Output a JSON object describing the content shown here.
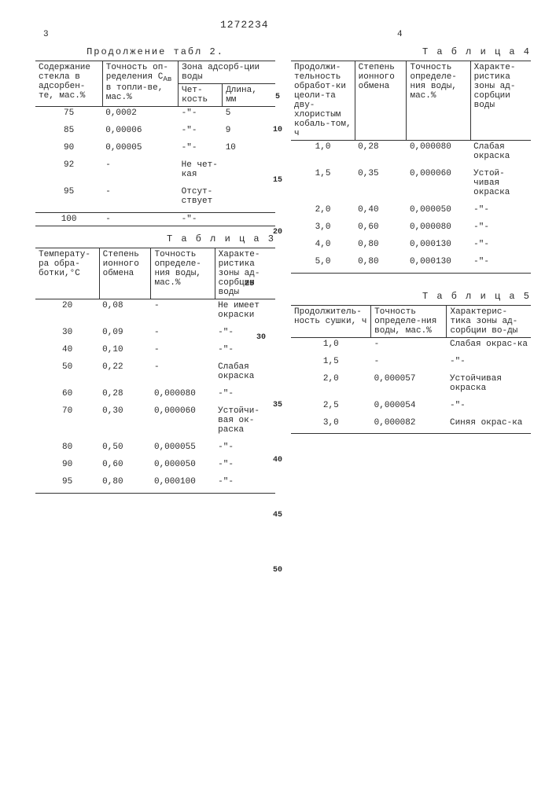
{
  "doc_number": "1272234",
  "page_left": "3",
  "page_right": "4",
  "margin_numbers": [
    "5",
    "10",
    "15",
    "20",
    "25",
    "30",
    "35",
    "40",
    "45",
    "50"
  ],
  "table2": {
    "title": "Продолжение табл 2.",
    "headers": {
      "c1": "Содержание стекла в адсорбен-те, мас.%",
      "c2": "Точность оп-ределения С<sub>Ав</sub> в топли-ве, мас.%",
      "c3_span": "Зона адсорб-ции воды",
      "c3": "Чет-кость",
      "c4": "Длина, мм"
    },
    "rows": [
      {
        "a": "75",
        "b": "0,0002",
        "c": "-\"-",
        "d": "5"
      },
      {
        "a": "85",
        "b": "0,00006",
        "c": "-\"-",
        "d": "9"
      },
      {
        "a": "90",
        "b": "0,00005",
        "c": "-\"-",
        "d": "10"
      },
      {
        "a": "92",
        "b": "-",
        "c": "Не чет-кая",
        "d": ""
      },
      {
        "a": "95",
        "b": "-",
        "c": "Отсут-ствует",
        "d": ""
      },
      {
        "a": "100",
        "b": "-",
        "c": "-\"-",
        "d": ""
      }
    ]
  },
  "table3": {
    "title": "Т а б л и ц а 3",
    "headers": {
      "c1": "Температу-ра обра-ботки,°С",
      "c2": "Степень ионного обмена",
      "c3": "Точность определе-ния воды, мас.%",
      "c4": "Характе-ристика зоны ад-сорбции воды"
    },
    "rows": [
      {
        "a": "20",
        "b": "0,08",
        "c": "-",
        "d": "Не имеет окраски"
      },
      {
        "a": "30",
        "b": "0,09",
        "c": "-",
        "d": "-\"-"
      },
      {
        "a": "40",
        "b": "0,10",
        "c": "-",
        "d": "-\"-"
      },
      {
        "a": "50",
        "b": "0,22",
        "c": "-",
        "d": "Слабая окраска"
      },
      {
        "a": "60",
        "b": "0,28",
        "c": "0,000080",
        "d": "-\"-"
      },
      {
        "a": "70",
        "b": "0,30",
        "c": "0,000060",
        "d": "Устойчи-вая ок-раска"
      },
      {
        "a": "80",
        "b": "0,50",
        "c": "0,000055",
        "d": "-\"-"
      },
      {
        "a": "90",
        "b": "0,60",
        "c": "0,000050",
        "d": "-\"-"
      },
      {
        "a": "95",
        "b": "0,80",
        "c": "0,000100",
        "d": "-\"-"
      }
    ]
  },
  "table4": {
    "title": "Т а б л и ц а  4",
    "headers": {
      "c1": "Продолжи-тельность обработ-ки цеоли-та дву-хлористым кобаль-том, ч",
      "c2": "Степень ионного обмена",
      "c3": "Точность определе-ния воды, мас.%",
      "c4": "Характе-ристика зоны ад-сорбции воды"
    },
    "rows": [
      {
        "a": "1,0",
        "b": "0,28",
        "c": "0,000080",
        "d": "Слабая окраска"
      },
      {
        "a": "1,5",
        "b": "0,35",
        "c": "0,000060",
        "d": "Устой-чивая окраска"
      },
      {
        "a": "2,0",
        "b": "0,40",
        "c": "0,000050",
        "d": "-\"-"
      },
      {
        "a": "3,0",
        "b": "0,60",
        "c": "0,000080",
        "d": "-\"-"
      },
      {
        "a": "4,0",
        "b": "0,80",
        "c": "0,000130",
        "d": "-\"-"
      },
      {
        "a": "5,0",
        "b": "0,80",
        "c": "0,000130",
        "d": "-\"-"
      }
    ]
  },
  "table5": {
    "title": "Т а б л и ц а 5",
    "headers": {
      "c1": "Продолжитель-ность сушки, ч",
      "c2": "Точность определе-ния воды, мас.%",
      "c3": "Характерис-тика зоны ад-сорбции во-ды"
    },
    "rows": [
      {
        "a": "1,0",
        "b": "-",
        "c": "Слабая окрас-ка"
      },
      {
        "a": "1,5",
        "b": "-",
        "c": "-\"-"
      },
      {
        "a": "2,0",
        "b": "0,000057",
        "c": "Устойчивая окраска"
      },
      {
        "a": "2,5",
        "b": "0,000054",
        "c": "-\"-"
      },
      {
        "a": "3,0",
        "b": "0,000082",
        "c": "Синяя окрас-ка"
      }
    ]
  }
}
